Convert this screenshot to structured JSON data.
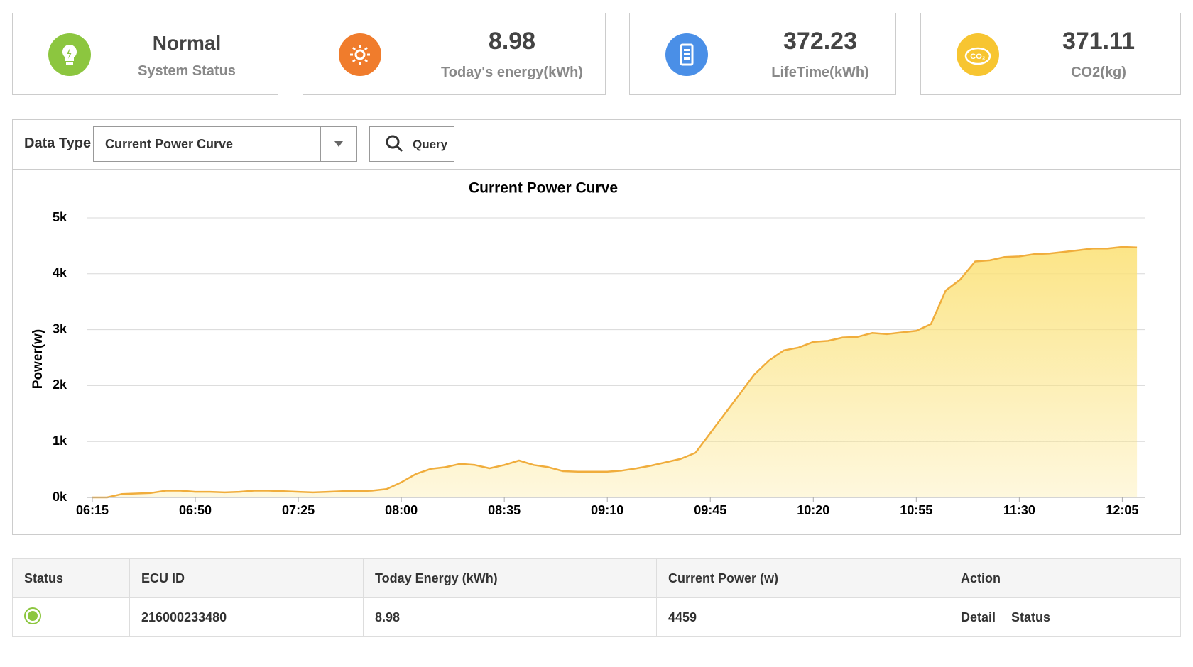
{
  "cards": [
    {
      "value": "Normal",
      "label": "System Status"
    },
    {
      "value": "8.98",
      "label": "Today's energy(kWh)"
    },
    {
      "value": "372.23",
      "label": "LifeTime(kWh)"
    },
    {
      "value": "371.11",
      "label": "CO2(kg)"
    }
  ],
  "filter": {
    "label": "Data Type",
    "selected": "Current Power Curve",
    "button": "Query"
  },
  "chart_data": {
    "type": "line",
    "title": "Current Power Curve",
    "y_label": "Power(w)",
    "color": "#f0ad3c",
    "area_color": "#fbe27a",
    "grid": true,
    "categories": [
      "06:15",
      null,
      null,
      null,
      null,
      null,
      null,
      "06:50",
      null,
      null,
      null,
      null,
      null,
      null,
      "07:25",
      null,
      null,
      null,
      null,
      null,
      null,
      "08:00",
      null,
      null,
      null,
      null,
      null,
      null,
      "08:35",
      null,
      null,
      null,
      null,
      null,
      null,
      "09:10",
      null,
      null,
      null,
      null,
      null,
      null,
      "09:45",
      null,
      null,
      null,
      null,
      null,
      null,
      "10:20",
      null,
      null,
      null,
      null,
      null,
      null,
      "10:55",
      null,
      null,
      null,
      null,
      null,
      null,
      "11:30",
      null,
      null,
      null,
      null,
      null,
      null,
      "12:05",
      null
    ],
    "values": [
      0,
      0,
      60,
      70,
      80,
      120,
      120,
      100,
      100,
      90,
      100,
      120,
      120,
      110,
      100,
      90,
      100,
      110,
      110,
      120,
      150,
      270,
      420,
      510,
      540,
      600,
      580,
      520,
      580,
      660,
      580,
      540,
      470,
      460,
      460,
      460,
      480,
      520,
      570,
      630,
      690,
      800,
      1150,
      1500,
      1850,
      2200,
      2450,
      2630,
      2680,
      2780,
      2800,
      2860,
      2870,
      2940,
      2920,
      2950,
      2980,
      3100,
      3700,
      3900,
      4220,
      4240,
      4300,
      4310,
      4350,
      4360,
      4390,
      4420,
      4450,
      4450,
      4480,
      4470
    ],
    "ylim": [
      0,
      5000
    ],
    "yticks": [
      {
        "value": 0,
        "label": "0k"
      },
      {
        "value": 1000,
        "label": "1k"
      },
      {
        "value": 2000,
        "label": "2k"
      },
      {
        "value": 3000,
        "label": "3k"
      },
      {
        "value": 4000,
        "label": "4k"
      },
      {
        "value": 5000,
        "label": "5k"
      }
    ]
  },
  "table": {
    "headers": [
      "Status",
      "ECU ID",
      "Today Energy (kWh)",
      "Current Power (w)",
      "Action"
    ],
    "rows": [
      {
        "ecu_id": "216000233480",
        "energy": "8.98",
        "power": "4459",
        "actions": [
          "Detail",
          "Status"
        ]
      }
    ]
  }
}
